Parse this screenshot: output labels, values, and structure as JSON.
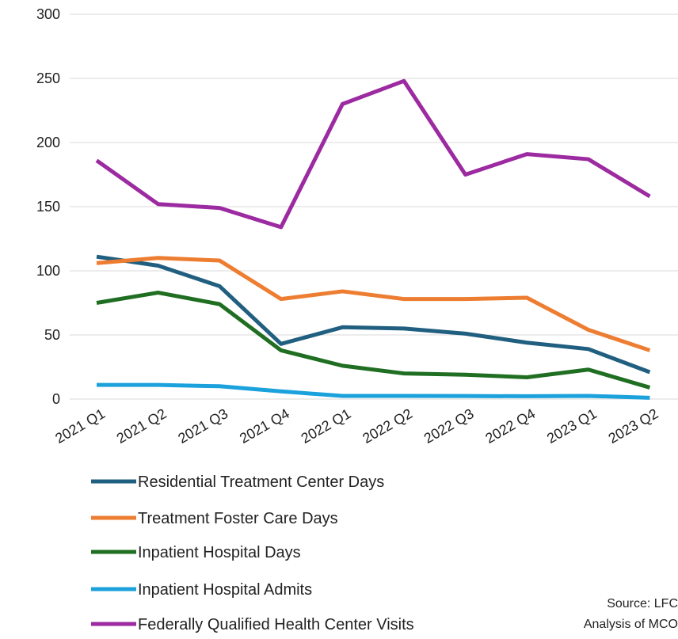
{
  "chart_data": {
    "type": "line",
    "categories": [
      "2021 Q1",
      "2021 Q2",
      "2021 Q3",
      "2021 Q4",
      "2022 Q1",
      "2022 Q2",
      "2022 Q3",
      "2022 Q4",
      "2023 Q1",
      "2023 Q2"
    ],
    "series": [
      {
        "name": "Residential Treatment Center Days",
        "color": "#215f80",
        "values": [
          111,
          104,
          88,
          43,
          56,
          55,
          51,
          44,
          39,
          21
        ]
      },
      {
        "name": "Treatment Foster Care Days",
        "color": "#ed7d31",
        "values": [
          106,
          110,
          108,
          78,
          84,
          78,
          78,
          79,
          54,
          38
        ]
      },
      {
        "name": "Inpatient Hospital Days",
        "color": "#1f6e22",
        "values": [
          75,
          83,
          74,
          38,
          26,
          20,
          19,
          17,
          23,
          9
        ]
      },
      {
        "name": "Inpatient Hospital  Admits",
        "color": "#1ba1dc",
        "values": [
          11,
          11,
          10,
          6,
          2.5,
          2.5,
          2.4,
          2.2,
          2.5,
          1
        ]
      },
      {
        "name": "Federally Qualified Health Center Visits",
        "color": "#9c2aa0",
        "values": [
          186,
          152,
          149,
          134,
          230,
          248,
          175,
          191,
          187,
          158
        ]
      }
    ],
    "ylim": [
      0,
      300
    ],
    "yticks": [
      0,
      50,
      100,
      150,
      200,
      250,
      300
    ],
    "grid": true,
    "legend": "bottom",
    "source": [
      "Source: LFC",
      "Analysis of MCO"
    ]
  }
}
